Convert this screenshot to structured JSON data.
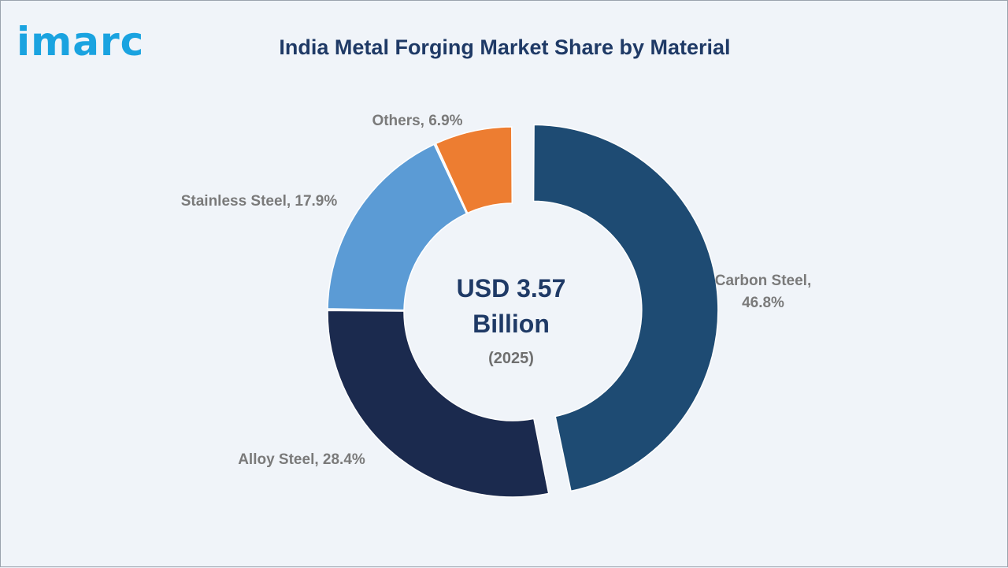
{
  "brand": {
    "logo_text": "imarc"
  },
  "chart_data": {
    "type": "pie",
    "donut": true,
    "title": "India Metal Forging Market Share by Material",
    "center": {
      "line1": "USD 3.57",
      "line2": "Billion",
      "line3": "(2025)"
    },
    "unit": "%",
    "slices": [
      {
        "name": "Carbon Steel",
        "value": 46.8,
        "label_lines": [
          "Carbon Steel,",
          "46.8%"
        ],
        "color": "#1e4b73",
        "exploded": true
      },
      {
        "name": "Alloy Steel",
        "value": 28.4,
        "label_lines": [
          "Alloy Steel, 28.4%"
        ],
        "color": "#1b2a4e",
        "exploded": false
      },
      {
        "name": "Stainless Steel",
        "value": 17.9,
        "label_lines": [
          "Stainless Steel, 17.9%"
        ],
        "color": "#5b9bd5",
        "exploded": false
      },
      {
        "name": "Others",
        "value": 6.9,
        "label_lines": [
          "Others, 6.9%"
        ],
        "color": "#ed7d31",
        "exploded": false
      }
    ]
  }
}
